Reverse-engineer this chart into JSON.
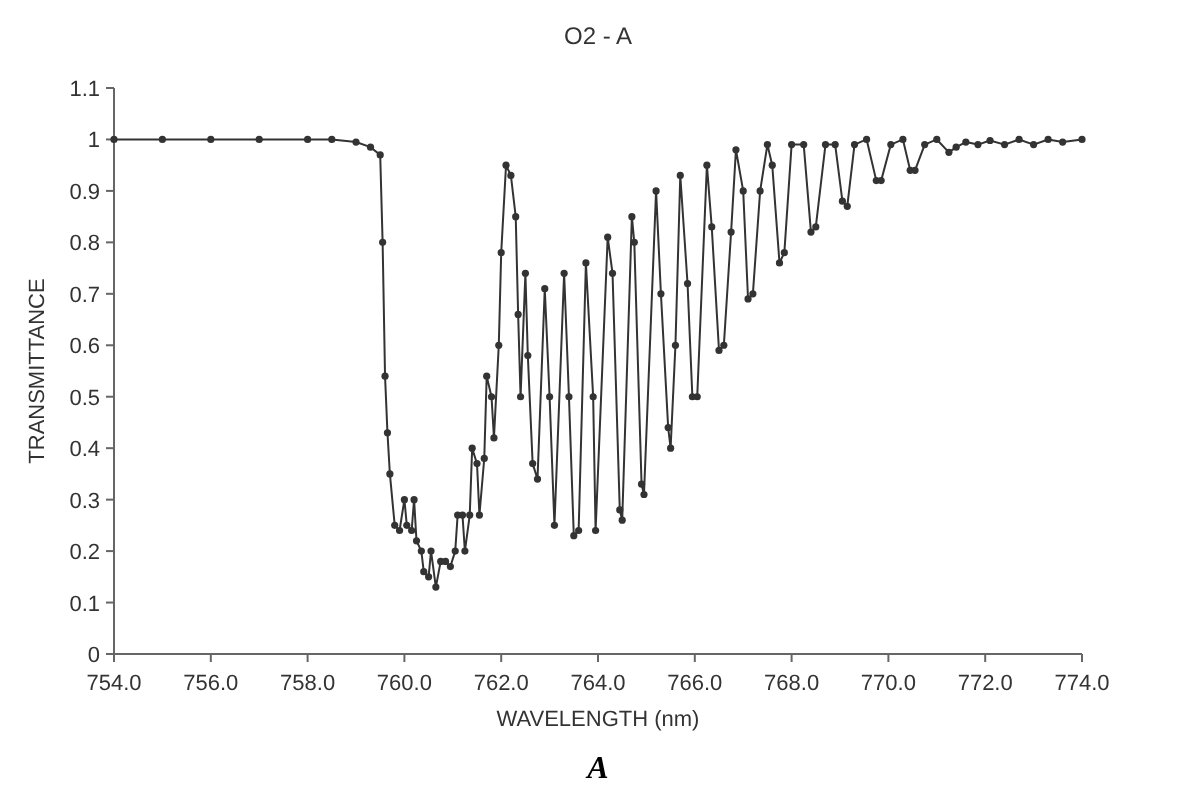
{
  "chart_data": {
    "type": "line",
    "title": "O2 - A",
    "xlabel": "WAVELENGTH (nm)",
    "ylabel": "TRANSMITTANCE",
    "annotations": [
      "A"
    ],
    "marker": "circle",
    "line_style": "solid",
    "grid": false,
    "xlim": [
      754,
      774
    ],
    "ylim": [
      0,
      1.1
    ],
    "xticks": [
      {
        "value": 754,
        "label": "754.0"
      },
      {
        "value": 756,
        "label": "756.0"
      },
      {
        "value": 758,
        "label": "758.0"
      },
      {
        "value": 760,
        "label": "760.0"
      },
      {
        "value": 762,
        "label": "762.0"
      },
      {
        "value": 764,
        "label": "764.0"
      },
      {
        "value": 766,
        "label": "766.0"
      },
      {
        "value": 768,
        "label": "768.0"
      },
      {
        "value": 770,
        "label": "770.0"
      },
      {
        "value": 772,
        "label": "772.0"
      },
      {
        "value": 774,
        "label": "774.0"
      }
    ],
    "yticks": [
      0,
      0.1,
      0.2,
      0.3,
      0.4,
      0.5,
      0.6,
      0.7,
      0.8,
      0.9,
      1,
      1.1
    ],
    "series": [
      {
        "color": "#333333",
        "x": [
          754,
          755,
          756,
          757,
          758,
          758.5,
          759,
          759.3,
          759.5,
          759.55,
          759.6,
          759.65,
          759.7,
          759.8,
          759.9,
          760,
          760.05,
          760.15,
          760.2,
          760.25,
          760.35,
          760.4,
          760.5,
          760.55,
          760.65,
          760.75,
          760.85,
          760.95,
          761.05,
          761.1,
          761.2,
          761.25,
          761.35,
          761.4,
          761.5,
          761.55,
          761.65,
          761.7,
          761.8,
          761.85,
          761.95,
          762,
          762.1,
          762.2,
          762.3,
          762.35,
          762.4,
          762.5,
          762.55,
          762.65,
          762.75,
          762.9,
          763,
          763.1,
          763.3,
          763.4,
          763.5,
          763.6,
          763.75,
          763.9,
          763.95,
          764.2,
          764.3,
          764.45,
          764.5,
          764.7,
          764.75,
          764.9,
          764.95,
          765.2,
          765.3,
          765.45,
          765.5,
          765.6,
          765.7,
          765.85,
          765.95,
          766.05,
          766.25,
          766.35,
          766.5,
          766.6,
          766.75,
          766.85,
          767,
          767.1,
          767.2,
          767.35,
          767.5,
          767.6,
          767.75,
          767.85,
          768,
          768.25,
          768.4,
          768.5,
          768.7,
          768.9,
          769.05,
          769.15,
          769.3,
          769.55,
          769.75,
          769.85,
          770.05,
          770.3,
          770.45,
          770.55,
          770.75,
          771,
          771.25,
          771.4,
          771.6,
          771.85,
          772.1,
          772.4,
          772.7,
          773,
          773.3,
          773.6,
          774
        ],
        "values": [
          1,
          1,
          1,
          1,
          1,
          1,
          0.995,
          0.985,
          0.97,
          0.8,
          0.54,
          0.43,
          0.35,
          0.25,
          0.24,
          0.3,
          0.25,
          0.24,
          0.3,
          0.22,
          0.2,
          0.16,
          0.15,
          0.2,
          0.13,
          0.18,
          0.18,
          0.17,
          0.2,
          0.27,
          0.27,
          0.2,
          0.27,
          0.4,
          0.37,
          0.27,
          0.38,
          0.54,
          0.5,
          0.42,
          0.6,
          0.78,
          0.95,
          0.93,
          0.85,
          0.66,
          0.5,
          0.74,
          0.58,
          0.37,
          0.34,
          0.71,
          0.5,
          0.25,
          0.74,
          0.5,
          0.23,
          0.24,
          0.76,
          0.5,
          0.24,
          0.81,
          0.74,
          0.28,
          0.26,
          0.85,
          0.8,
          0.33,
          0.31,
          0.9,
          0.7,
          0.44,
          0.4,
          0.6,
          0.93,
          0.72,
          0.5,
          0.5,
          0.95,
          0.83,
          0.59,
          0.6,
          0.82,
          0.98,
          0.9,
          0.69,
          0.7,
          0.9,
          0.99,
          0.95,
          0.76,
          0.78,
          0.99,
          0.99,
          0.82,
          0.83,
          0.99,
          0.99,
          0.88,
          0.87,
          0.99,
          1,
          0.92,
          0.92,
          0.99,
          1,
          0.94,
          0.94,
          0.99,
          1,
          0.975,
          0.985,
          0.995,
          0.99,
          0.998,
          0.99,
          1,
          0.99,
          1,
          0.995,
          1
        ]
      }
    ]
  }
}
